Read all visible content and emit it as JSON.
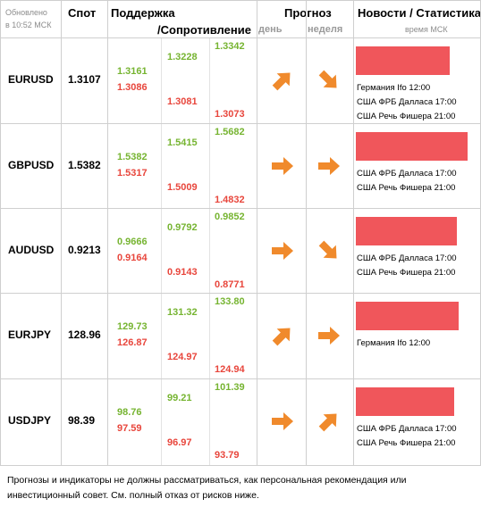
{
  "header": {
    "updated_label": "Обновлено",
    "updated_time": "в 10:52 МСК",
    "spot": "Спот",
    "support": "Поддержка",
    "resistance": "/Сопротивление",
    "forecast": "Прогноз",
    "day": "день",
    "week": "неделя",
    "news": "Новости / Статистика",
    "time_note": "время МСК"
  },
  "colors": {
    "support_green": "#76b431",
    "resistance_red": "#e8463c",
    "arrow_orange": "#f08a2c",
    "news_bar": "#f0565b"
  },
  "rows": [
    {
      "pair": "EURUSD",
      "spot": "1.3107",
      "s1": "1.3161",
      "s1b": "1.3086",
      "s2": "1.3228",
      "s2b": "1.3081",
      "s3": "1.3342",
      "s3b": "1.3073",
      "day_icon": "arrow-up-right-icon",
      "week_icon": "arrow-down-right-icon",
      "news_level": 0.82,
      "news": [
        "Германия Ifo 12:00",
        "США ФРБ Далласа 17:00",
        "США Речь Фишера 21:00"
      ]
    },
    {
      "pair": "GBPUSD",
      "spot": "1.5382",
      "s1": "1.5382",
      "s1b": "1.5317",
      "s2": "1.5415",
      "s2b": "1.5009",
      "s3": "1.5682",
      "s3b": "1.4832",
      "day_icon": "arrow-right-icon",
      "week_icon": "arrow-right-icon",
      "news_level": 0.98,
      "news": [
        "США ФРБ Далласа 17:00",
        "США Речь Фишера 21:00"
      ]
    },
    {
      "pair": "AUDUSD",
      "spot": "0.9213",
      "s1": "0.9666",
      "s1b": "0.9164",
      "s2": "0.9792",
      "s2b": "0.9143",
      "s3": "0.9852",
      "s3b": "0.8771",
      "day_icon": "arrow-right-icon",
      "week_icon": "arrow-down-right-icon",
      "news_level": 0.88,
      "news": [
        "США ФРБ Далласа 17:00",
        "США Речь Фишера 21:00"
      ]
    },
    {
      "pair": "EURJPY",
      "spot": "128.96",
      "s1": "129.73",
      "s1b": "126.87",
      "s2": "131.32",
      "s2b": "124.97",
      "s3": "133.80",
      "s3b": "124.94",
      "day_icon": "arrow-up-right-icon",
      "week_icon": "arrow-right-icon",
      "news_level": 0.9,
      "news": [
        "Германия Ifo 12:00"
      ]
    },
    {
      "pair": "USDJPY",
      "spot": "98.39",
      "s1": "98.76",
      "s1b": "97.59",
      "s2": "99.21",
      "s2b": "96.97",
      "s3": "101.39",
      "s3b": "93.79",
      "day_icon": "arrow-right-icon",
      "week_icon": "arrow-up-right-icon",
      "news_level": 0.86,
      "news": [
        "США ФРБ Далласа 17:00",
        "США Речь Фишера 21:00"
      ]
    }
  ],
  "footer": "Прогнозы и индикаторы не должны рассматриваться, как персональная рекомендация или инвестиционный совет. См. полный отказ от рисков ниже."
}
